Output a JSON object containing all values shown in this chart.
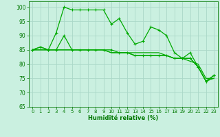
{
  "title": "",
  "xlabel": "Humidité relative (%)",
  "xlim": [
    -0.5,
    23.5
  ],
  "ylim": [
    65,
    102
  ],
  "yticks": [
    65,
    70,
    75,
    80,
    85,
    90,
    95,
    100
  ],
  "xticks": [
    0,
    1,
    2,
    3,
    4,
    5,
    6,
    7,
    8,
    9,
    10,
    11,
    12,
    13,
    14,
    15,
    16,
    17,
    18,
    19,
    20,
    21,
    22,
    23
  ],
  "bg_color": "#caf0e0",
  "grid_color": "#aad8c8",
  "line_color": "#00aa00",
  "series": [
    [
      85,
      86,
      85,
      91,
      100,
      99,
      99,
      99,
      99,
      99,
      94,
      96,
      91,
      87,
      88,
      93,
      92,
      90,
      84,
      82,
      84,
      79,
      74,
      76
    ],
    [
      85,
      86,
      85,
      85,
      90,
      85,
      85,
      85,
      85,
      85,
      85,
      84,
      84,
      83,
      83,
      83,
      83,
      83,
      82,
      82,
      82,
      79,
      74,
      76
    ],
    [
      85,
      85,
      85,
      85,
      85,
      85,
      85,
      85,
      85,
      85,
      84,
      84,
      84,
      83,
      83,
      83,
      83,
      83,
      82,
      82,
      82,
      79,
      74,
      75
    ],
    [
      85,
      85,
      85,
      85,
      85,
      85,
      85,
      85,
      85,
      85,
      84,
      84,
      84,
      84,
      84,
      84,
      84,
      83,
      82,
      82,
      81,
      80,
      75,
      75
    ]
  ],
  "markers": [
    true,
    true,
    false,
    false
  ]
}
